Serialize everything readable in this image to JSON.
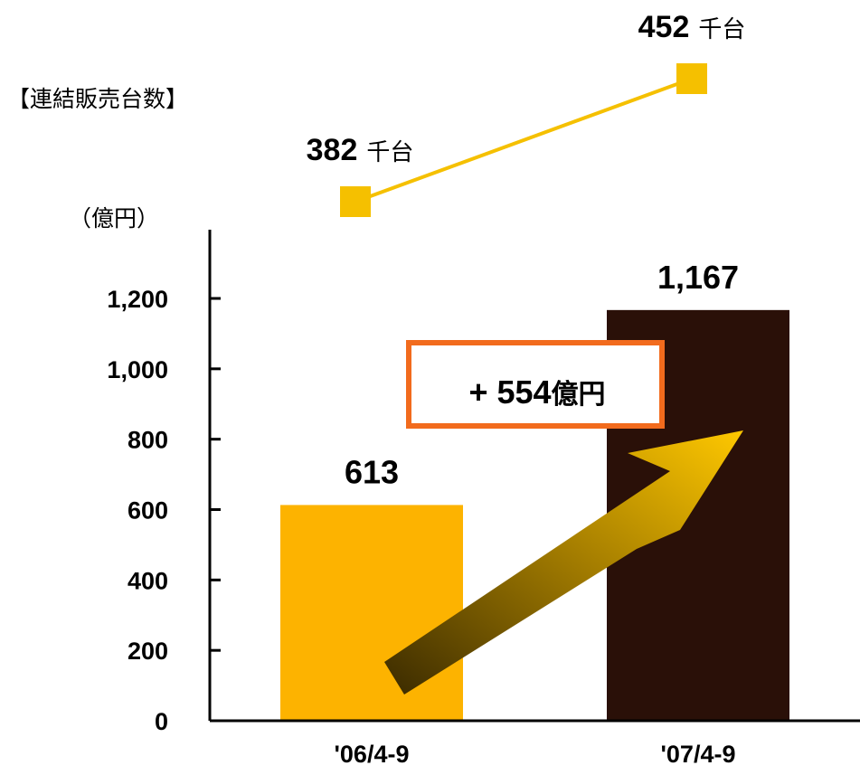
{
  "chart_data": {
    "type": "bar",
    "categories": [
      "'06/4-9",
      "'07/4-9"
    ],
    "values": [
      613,
      1167
    ],
    "value_labels": [
      "613",
      "1,167"
    ],
    "y_unit": "（億円）",
    "ylim": [
      0,
      1200
    ],
    "y_ticks": [
      0,
      200,
      400,
      600,
      800,
      1000,
      1200
    ],
    "y_tick_labels": [
      "0",
      "200",
      "400",
      "600",
      "800",
      "1,000",
      "1,200"
    ],
    "grid": false,
    "bar_colors": [
      "#FDB300",
      "#2A1008"
    ],
    "difference": {
      "label": "+ 554",
      "unit": "億円",
      "box_color": "#F26B1D"
    },
    "line_series": {
      "title": "【連結販売台数】",
      "values": [
        382,
        452
      ],
      "value_labels": [
        "382",
        "452"
      ],
      "unit": "千台",
      "color": "#F5C000"
    }
  }
}
